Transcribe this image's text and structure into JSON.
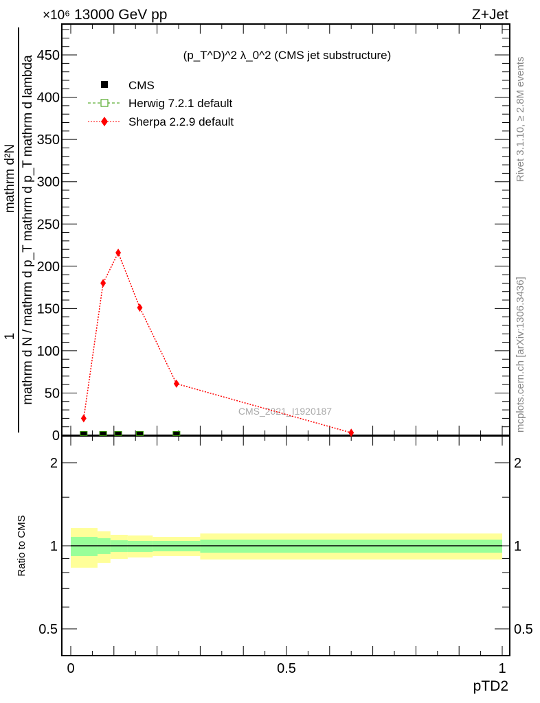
{
  "header": {
    "left": "13000 GeV pp",
    "right": "Z+Jet",
    "multiplier": "×10⁶"
  },
  "side": {
    "rivet": "Rivet 3.1.10, ≥ 2.8M events",
    "mcplots": "mcplots.cern.ch [arXiv:1306.3436]"
  },
  "watermark": "CMS_2021_I1920187",
  "chart_data": [
    {
      "type": "line",
      "title": "(p_T^D)^2 λ_0^2 (CMS jet substructure)",
      "ylabel": "1 / (mathrm d N / mathrm d p_T) · mathrm d²N / (mathrm d p_T mathrm d lambda)",
      "ylabel_num": "mathrm d²N",
      "ylabel_den": "mathrm d N / mathrm d p_T mathrm d p_T mathrm d lambda",
      "ylabel_one": "1",
      "xlim": [
        0,
        1
      ],
      "ylim": [
        0,
        486
      ],
      "y_multiplier": "1e6",
      "yticks": [
        0,
        50,
        100,
        150,
        200,
        250,
        300,
        350,
        400,
        450
      ],
      "legend": [
        "CMS",
        "Herwig 7.2.1 default",
        "Sherpa 2.2.9 default"
      ],
      "legend_placement": "top-left",
      "series": [
        {
          "name": "CMS",
          "color": "#000000",
          "x": [
            0.03,
            0.075,
            0.11,
            0.16,
            0.245
          ],
          "y": [
            0.5,
            0.5,
            0.5,
            0.5,
            0.5
          ]
        },
        {
          "name": "Herwig 7.2.1 default",
          "color": "#339900",
          "x": [
            0.03,
            0.075,
            0.11,
            0.16,
            0.245
          ],
          "y": [
            0.5,
            0.5,
            0.5,
            0.5,
            0.5
          ]
        },
        {
          "name": "Sherpa 2.2.9 default",
          "color": "#ff0000",
          "x": [
            0.03,
            0.075,
            0.11,
            0.16,
            0.245,
            0.65
          ],
          "y": [
            20,
            180,
            216,
            151,
            61,
            3
          ]
        }
      ]
    },
    {
      "type": "area",
      "ylabel": "Ratio to CMS",
      "xlabel": "pTD2",
      "xlim": [
        0,
        1
      ],
      "ylim": [
        0.4,
        2.4
      ],
      "yscale": "log",
      "yticks": [
        0.5,
        1,
        2
      ],
      "xticks": [
        0,
        0.5,
        1
      ],
      "bin_edges": [
        0,
        0.062,
        0.092,
        0.132,
        0.19,
        0.3,
        1.0
      ],
      "yellow_up": [
        1.16,
        1.128,
        1.096,
        1.09,
        1.077,
        1.108
      ],
      "yellow_down": [
        0.833,
        0.867,
        0.897,
        0.907,
        0.918,
        0.892
      ],
      "green_up": [
        1.077,
        1.065,
        1.047,
        1.041,
        1.041,
        1.053
      ],
      "green_down": [
        0.918,
        0.934,
        0.95,
        0.95,
        0.955,
        0.944
      ],
      "colors": {
        "yellow": "#ffff99",
        "green": "#99ff99"
      }
    }
  ]
}
